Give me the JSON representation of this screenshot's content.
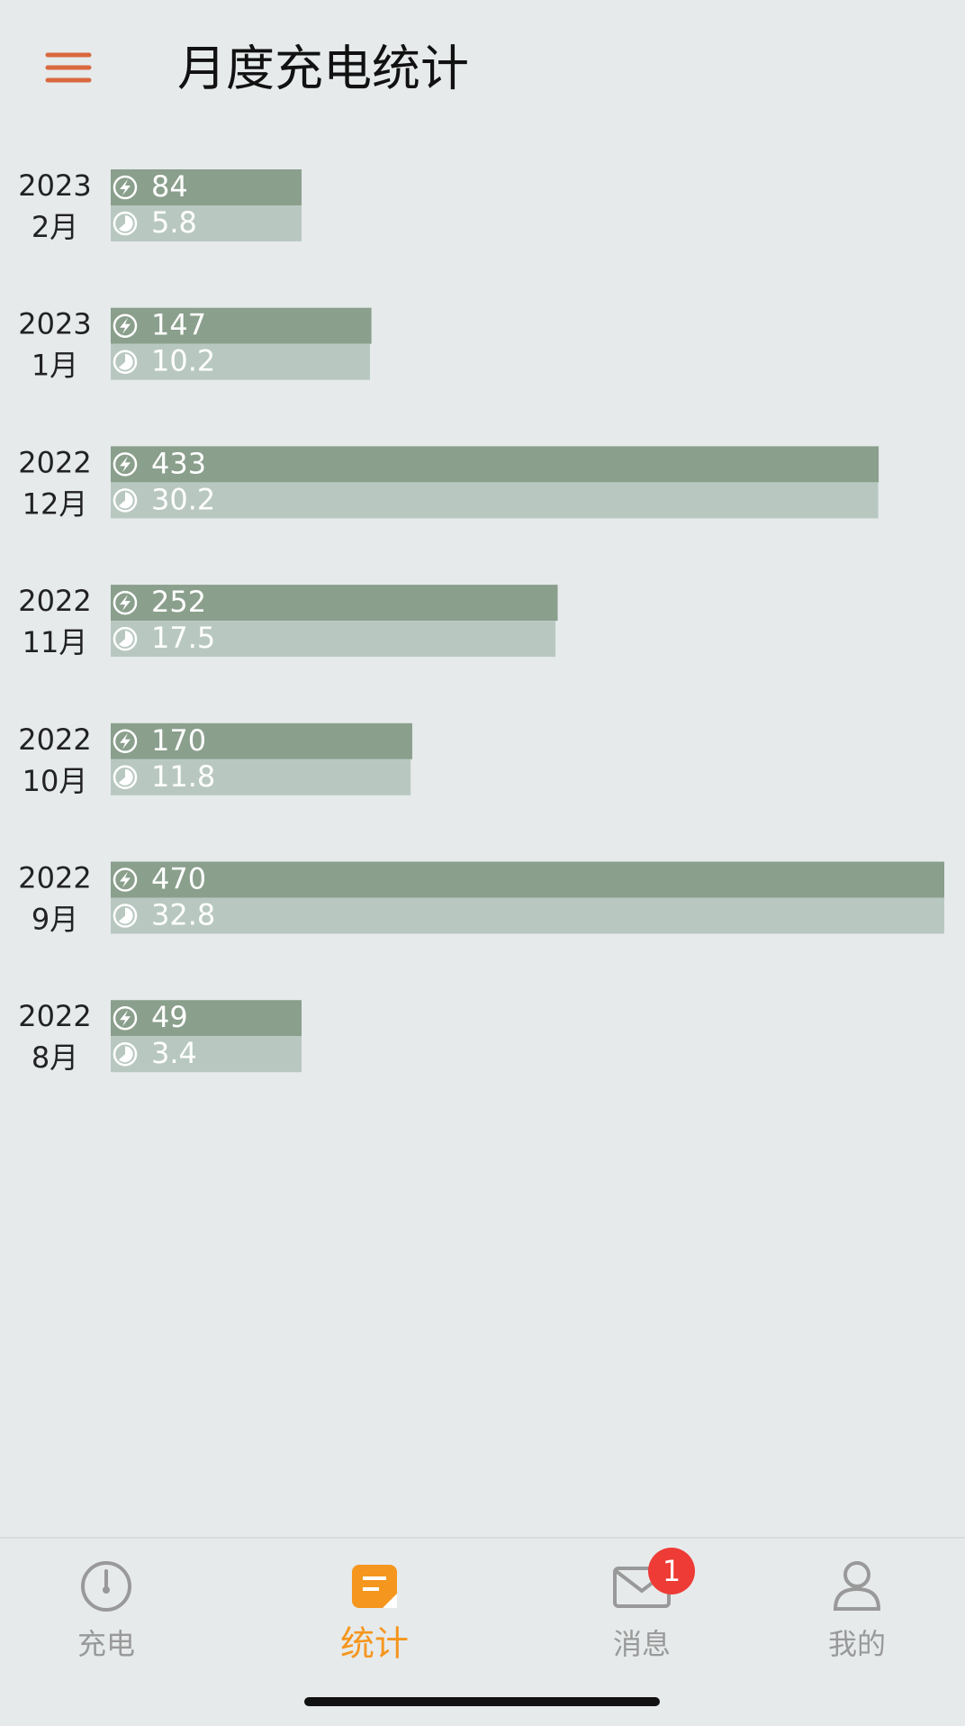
{
  "header": {
    "title": "月度充电统计"
  },
  "chart_data": {
    "type": "bar",
    "orientation": "horizontal",
    "years": [
      "2023",
      "2023",
      "2022",
      "2022",
      "2022",
      "2022",
      "2022"
    ],
    "categories": [
      "2月",
      "1月",
      "12月",
      "11月",
      "10月",
      "9月",
      "8月"
    ],
    "series": [
      {
        "color": "#8a9f8c",
        "values": [
          84,
          147,
          433,
          252,
          170,
          470,
          49
        ]
      },
      {
        "color": "#b8c8c1",
        "values": [
          5.8,
          10.2,
          30.2,
          17.5,
          11.8,
          32.8,
          3.4
        ]
      }
    ]
  },
  "nav": {
    "tabs": [
      "充电",
      "统计",
      "消息",
      "我的"
    ],
    "active": 1,
    "badge": "1"
  }
}
